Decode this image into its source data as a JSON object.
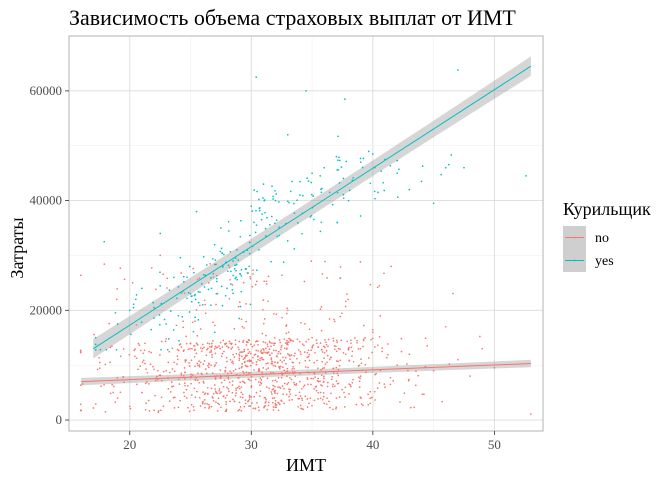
{
  "chart_data": {
    "type": "scatter",
    "title": "Зависимость объема страховых выплат от ИМТ",
    "xlabel": "ИМТ",
    "ylabel": "Затраты",
    "xlim": [
      15,
      54
    ],
    "ylim": [
      -2000,
      70000
    ],
    "x_ticks": [
      20,
      30,
      40,
      50
    ],
    "y_ticks": [
      0,
      20000,
      40000,
      60000
    ],
    "grid": true,
    "legend": {
      "title": "Курильщик",
      "position": "right",
      "entries": [
        {
          "label": "no",
          "color": "#F8766D"
        },
        {
          "label": "yes",
          "color": "#00BFC4"
        }
      ]
    },
    "series": [
      {
        "name": "no",
        "color": "#F8766D",
        "point_count": 1064,
        "x_range": [
          15.96,
          53.13
        ],
        "y_range": [
          1100,
          36900
        ],
        "trend": {
          "x": [
            16,
            53
          ],
          "y": [
            7000,
            10300
          ]
        },
        "sample_points": [
          [
            16,
            1700
          ],
          [
            17,
            2200
          ],
          [
            18,
            1500
          ],
          [
            19,
            4000
          ],
          [
            20,
            2500
          ],
          [
            21,
            5000
          ],
          [
            22,
            1800
          ],
          [
            22.5,
            30000
          ],
          [
            23,
            9000
          ],
          [
            24,
            2300
          ],
          [
            25,
            14000
          ],
          [
            26,
            3000
          ],
          [
            26.5,
            25000
          ],
          [
            27,
            8000
          ],
          [
            28,
            4500
          ],
          [
            29,
            12000
          ],
          [
            30,
            6000
          ],
          [
            31,
            11000
          ],
          [
            32,
            3500
          ],
          [
            33,
            20000
          ],
          [
            34,
            7000
          ],
          [
            35,
            15000
          ],
          [
            36,
            9500
          ],
          [
            37,
            4000
          ],
          [
            38,
            13000
          ],
          [
            39,
            8000
          ],
          [
            40,
            16000
          ],
          [
            41,
            6000
          ],
          [
            41.5,
            28000
          ],
          [
            42,
            10000
          ],
          [
            43,
            12000
          ],
          [
            45,
            9000
          ],
          [
            46,
            17000
          ],
          [
            47,
            11000
          ],
          [
            48,
            8000
          ],
          [
            49,
            13000
          ],
          [
            50,
            9500
          ],
          [
            53,
            1100
          ]
        ]
      },
      {
        "name": "yes",
        "color": "#00BFC4",
        "point_count": 274,
        "x_range": [
          17.2,
          52.6
        ],
        "y_range": [
          12800,
          63800
        ],
        "trend": {
          "x": [
            17,
            53
          ],
          "y": [
            13000,
            64500
          ]
        },
        "sample_points": [
          [
            17.2,
            15000
          ],
          [
            17.9,
            32500
          ],
          [
            19,
            17500
          ],
          [
            20,
            20000
          ],
          [
            20.5,
            22000
          ],
          [
            21,
            24000
          ],
          [
            22,
            20500
          ],
          [
            22.5,
            34000
          ],
          [
            23,
            17500
          ],
          [
            24,
            19000
          ],
          [
            25,
            23000
          ],
          [
            25.5,
            38000
          ],
          [
            26,
            21000
          ],
          [
            27,
            16000
          ],
          [
            27.5,
            35000
          ],
          [
            28,
            24000
          ],
          [
            29,
            18500
          ],
          [
            30,
            39000
          ],
          [
            30.4,
            62500
          ],
          [
            31,
            43000
          ],
          [
            32,
            40000
          ],
          [
            33,
            52000
          ],
          [
            34,
            41000
          ],
          [
            34.5,
            60000
          ],
          [
            35,
            45000
          ],
          [
            36,
            46000
          ],
          [
            37,
            48000
          ],
          [
            37.7,
            58500
          ],
          [
            38,
            40000
          ],
          [
            39,
            47000
          ],
          [
            40,
            48500
          ],
          [
            41,
            47500
          ],
          [
            42,
            45000
          ],
          [
            43,
            42000
          ],
          [
            44,
            43500
          ],
          [
            45,
            39500
          ],
          [
            46,
            46000
          ],
          [
            47,
            63800
          ],
          [
            47.5,
            46000
          ],
          [
            52.6,
            44500
          ]
        ]
      }
    ]
  }
}
